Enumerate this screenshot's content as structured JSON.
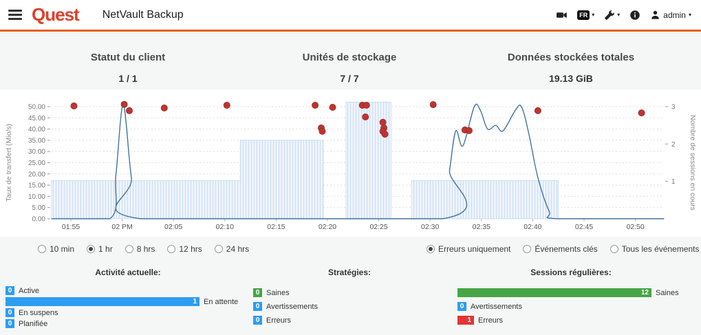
{
  "header": {
    "logo": "Quest",
    "title": "NetVault Backup",
    "lang_badge": "FR",
    "user": "admin",
    "icons": [
      "menu",
      "camera",
      "language",
      "tools",
      "info",
      "user"
    ]
  },
  "stats": [
    {
      "label": "Statut du client",
      "value": "1 / 1"
    },
    {
      "label": "Unités de stockage",
      "value": "7 / 7"
    },
    {
      "label": "Données stockées totales",
      "value": "19.13 GiB"
    }
  ],
  "chart_data": {
    "type": "line",
    "title": "",
    "grid": true,
    "left_axis": {
      "label": "Taux de transfert (Mio/s)",
      "tick_values": [
        0,
        5,
        10,
        15,
        20,
        25,
        30,
        35,
        40,
        45,
        50
      ],
      "tick_labels": [
        "0.00",
        "5.00",
        "10.00",
        "15.00",
        "20.00",
        "25.00",
        "30.00",
        "35.00",
        "40.00",
        "45.00",
        "50.00"
      ],
      "range": [
        0,
        54
      ]
    },
    "right_axis": {
      "label": "Nombre de sessions en cours",
      "tick_values": [
        1,
        2,
        3
      ],
      "range": [
        0,
        3.25
      ]
    },
    "x_axis": {
      "tick_minutes": [
        5,
        10,
        15,
        20,
        25,
        30,
        35,
        40,
        45,
        50,
        55,
        60
      ],
      "tick_labels": [
        "01:55",
        "02 PM",
        "02:05",
        "02:10",
        "02:15",
        "02:20",
        "02:25",
        "02:30",
        "02:35",
        "02:40",
        "02:45",
        "02:50"
      ],
      "range": [
        3.1,
        62.8
      ]
    },
    "series": [
      {
        "name": "Taux de transfert (Mio/s)",
        "type": "area",
        "axis": "left",
        "color": "#dce8f8",
        "points": [
          [
            3.1,
            17
          ],
          [
            21.5,
            17
          ],
          [
            21.5,
            35
          ],
          [
            29.6,
            35
          ],
          [
            29.6,
            0
          ],
          [
            31.8,
            0
          ],
          [
            31.8,
            52
          ],
          [
            36.2,
            52
          ],
          [
            36.2,
            0
          ],
          [
            38.2,
            0
          ],
          [
            38.2,
            17
          ],
          [
            52.5,
            17
          ],
          [
            52.5,
            0
          ],
          [
            62.8,
            0
          ]
        ]
      },
      {
        "name": "Sessions en cours",
        "type": "line",
        "axis": "right",
        "color": "#44749f",
        "points": [
          [
            3.1,
            0
          ],
          [
            8.8,
            0
          ],
          [
            9.4,
            1.2
          ],
          [
            10.1,
            3.05
          ],
          [
            10.9,
            1.1
          ],
          [
            11.8,
            0
          ],
          [
            41.2,
            0
          ],
          [
            41.9,
            1.3
          ],
          [
            42.5,
            2.35
          ],
          [
            43.2,
            1.95
          ],
          [
            44.3,
            3.0
          ],
          [
            44.9,
            2.9
          ],
          [
            45.6,
            2.4
          ],
          [
            46.4,
            2.5
          ],
          [
            47.1,
            2.35
          ],
          [
            48.3,
            2.9
          ],
          [
            48.9,
            3.0
          ],
          [
            49.6,
            2.3
          ],
          [
            50.5,
            1.1
          ],
          [
            51.6,
            0.2
          ],
          [
            52.4,
            0
          ],
          [
            62.8,
            0
          ]
        ]
      },
      {
        "name": "Erreurs",
        "type": "scatter",
        "axis": "left",
        "color": "#bd3430",
        "points": [
          [
            5.3,
            50.3
          ],
          [
            10.2,
            51
          ],
          [
            10.7,
            48.2
          ],
          [
            14.1,
            49.4
          ],
          [
            20.2,
            50.6
          ],
          [
            28.8,
            50.6
          ],
          [
            29.4,
            40.5
          ],
          [
            29.5,
            39
          ],
          [
            30.5,
            49.7
          ],
          [
            33.4,
            50.6
          ],
          [
            33.8,
            50.6
          ],
          [
            33.7,
            45.4
          ],
          [
            35.4,
            43
          ],
          [
            35.5,
            40.5
          ],
          [
            35.4,
            39
          ],
          [
            35.6,
            37.7
          ],
          [
            40.3,
            50.9
          ],
          [
            43.4,
            39.6
          ],
          [
            43.8,
            39.3
          ],
          [
            50.5,
            48.2
          ],
          [
            60.6,
            47.2
          ]
        ]
      }
    ]
  },
  "time_filters": {
    "options": [
      {
        "label": "10 min",
        "selected": false
      },
      {
        "label": "1 hr",
        "selected": true
      },
      {
        "label": "8 hrs",
        "selected": false
      },
      {
        "label": "12 hrs",
        "selected": false
      },
      {
        "label": "24 hrs",
        "selected": false
      }
    ]
  },
  "event_filters": {
    "options": [
      {
        "label": "Erreurs uniquement",
        "selected": true
      },
      {
        "label": "Événements clés",
        "selected": false
      },
      {
        "label": "Tous les événements",
        "selected": false
      }
    ]
  },
  "activity": {
    "title": "Activité actuelle:",
    "rows": [
      {
        "value": "0",
        "label": "Active",
        "color": "blue",
        "size": "badge"
      },
      {
        "value": "1",
        "label": "En attente",
        "color": "blue",
        "size": "full"
      },
      {
        "value": "0",
        "label": "En suspens",
        "color": "blue",
        "size": "badge"
      },
      {
        "value": "0",
        "label": "Planifiée",
        "color": "blue",
        "size": "badge"
      }
    ]
  },
  "strategies": {
    "title": "Stratégies:",
    "rows": [
      {
        "value": "0",
        "label": "Saines",
        "color": "green",
        "size": "badge"
      },
      {
        "value": "0",
        "label": "Avertissements",
        "color": "blue",
        "size": "badge"
      },
      {
        "value": "0",
        "label": "Erreurs",
        "color": "blue",
        "size": "badge"
      }
    ]
  },
  "regular_sessions": {
    "title": "Sessions régulières:",
    "rows": [
      {
        "value": "12",
        "label": "Saines",
        "color": "green",
        "size": "full"
      },
      {
        "value": "0",
        "label": "Avertissements",
        "color": "blue",
        "size": "badge"
      },
      {
        "value": "1",
        "label": "Erreurs",
        "color": "red",
        "size": "small"
      }
    ]
  }
}
